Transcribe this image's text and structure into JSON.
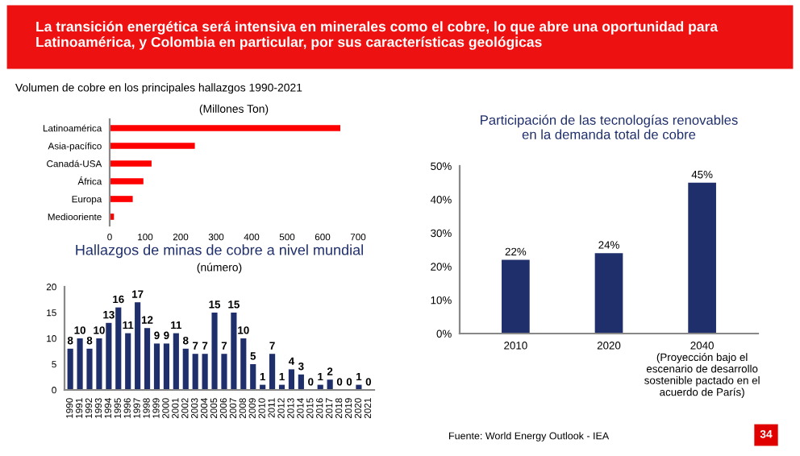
{
  "chart_data": [
    {
      "type": "bar",
      "orientation": "horizontal",
      "title": "Volumen de cobre en los principales hallazgos 1990-2021",
      "subtitle": "(Millones Ton)",
      "annotations": [
        "La transición energética será intensiva en minerales como el cobre, lo que abre una oportunidad para Latinoamérica, y Colombia en particular, por sus características geológicas"
      ],
      "categories": [
        "Latinoamérica",
        "Asia-pacífico",
        "Canadá-USA",
        "África",
        "Europa",
        "Mediooriente"
      ],
      "values": [
        650,
        240,
        118,
        95,
        65,
        12
      ],
      "color": "#ff0000",
      "xlim": [
        0,
        700
      ],
      "xticks": [
        0,
        100,
        200,
        300,
        400,
        500,
        600,
        700
      ],
      "grid": false
    },
    {
      "type": "bar",
      "title": "Hallazgos de minas de cobre a nivel mundial",
      "subtitle": "(número)",
      "categories": [
        "1990",
        "1991",
        "1992",
        "1993",
        "1994",
        "1995",
        "1996",
        "1997",
        "1998",
        "1999",
        "2000",
        "2001",
        "2002",
        "2003",
        "2004",
        "2005",
        "2006",
        "2007",
        "2008",
        "2009",
        "2010",
        "2011",
        "2012",
        "2013",
        "2014",
        "2015",
        "2016",
        "2017",
        "2018",
        "2019",
        "2020",
        "2021"
      ],
      "values": [
        8,
        10,
        8,
        10,
        13,
        16,
        11,
        17,
        12,
        9,
        9,
        11,
        8,
        7,
        7,
        15,
        7,
        15,
        10,
        5,
        1,
        7,
        1,
        4,
        3,
        0,
        1,
        2,
        0,
        0,
        1,
        0
      ],
      "color": "#1f2f6b",
      "ylim": [
        0,
        20
      ],
      "yticks": [
        0,
        5,
        10,
        15,
        20
      ],
      "data_labels": true,
      "grid": false
    },
    {
      "type": "bar",
      "title": "Participación de las tecnologías renovables\nen la demanda total de cobre",
      "annotations": [
        "Fuente: World Energy Outlook - IEA",
        "34"
      ],
      "categories": [
        "2010",
        "2020",
        "2040\n(Proyección bajo el\nescenario de desarrollo\nsostenible pactado en el\nacuerdo de París)"
      ],
      "values": [
        22,
        24,
        45
      ],
      "value_labels": [
        "22%",
        "24%",
        "45%"
      ],
      "color": "#1f2f6b",
      "ylim": [
        0,
        50
      ],
      "yticks": [
        {
          "value": 0,
          "label": "0%"
        },
        {
          "value": 10,
          "label": "10%"
        },
        {
          "value": 20,
          "label": "20%"
        },
        {
          "value": 30,
          "label": "30%"
        },
        {
          "value": 40,
          "label": "40%"
        },
        {
          "value": 50,
          "label": "50%"
        }
      ],
      "grid": false
    }
  ]
}
